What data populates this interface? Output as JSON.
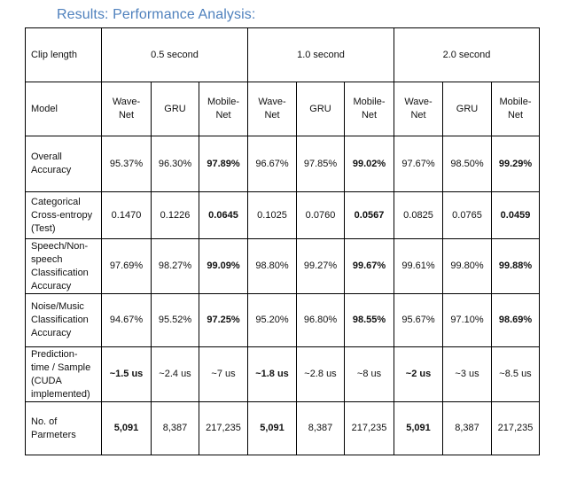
{
  "title": "Results: Performance Analysis:",
  "table": {
    "clip_length_label": "Clip length",
    "clip_lengths": [
      "0.5 second",
      "1.0 second",
      "2.0 second"
    ],
    "model_label": "Model",
    "models": [
      {
        "line1": "Wave-",
        "line2": "Net"
      },
      {
        "line1": "GRU",
        "line2": ""
      },
      {
        "line1": "Mobile-",
        "line2": "Net"
      }
    ],
    "rows": [
      {
        "label": [
          "Overall",
          "Accuracy"
        ],
        "values": [
          "95.37%",
          "96.30%",
          "97.89%",
          "96.67%",
          "97.85%",
          "99.02%",
          "97.67%",
          "98.50%",
          "99.29%"
        ],
        "bold": [
          2,
          5,
          8
        ]
      },
      {
        "label": [
          "Categorical",
          "Cross-entropy",
          "(Test)"
        ],
        "values": [
          "0.1470",
          "0.1226",
          "0.0645",
          "0.1025",
          "0.0760",
          "0.0567",
          "0.0825",
          "0.0765",
          "0.0459"
        ],
        "bold": [
          2,
          5,
          8
        ]
      },
      {
        "label": [
          "Speech/Non-",
          "speech",
          "Classification",
          "Accuracy"
        ],
        "values": [
          "97.69%",
          "98.27%",
          "99.09%",
          "98.80%",
          "99.27%",
          "99.67%",
          "99.61%",
          "99.80%",
          "99.88%"
        ],
        "bold": [
          2,
          5,
          8
        ]
      },
      {
        "label": [
          "Noise/Music",
          "Classification",
          "Accuracy"
        ],
        "values": [
          "94.67%",
          "95.52%",
          "97.25%",
          "95.20%",
          "96.80%",
          "98.55%",
          "95.67%",
          "97.10%",
          "98.69%"
        ],
        "bold": [
          2,
          5,
          8
        ]
      },
      {
        "label": [
          "Prediction-",
          "time / Sample",
          "(CUDA",
          "implemented)"
        ],
        "values": [
          "~1.5 us",
          "~2.4 us",
          "~7 us",
          "~1.8 us",
          "~2.8 us",
          "~8 us",
          "~2 us",
          "~3 us",
          "~8.5 us"
        ],
        "bold": [
          0,
          3,
          6
        ]
      },
      {
        "label": [
          "No. of",
          "Parmeters"
        ],
        "values": [
          "5,091",
          "8,387",
          "217,235",
          "5,091",
          "8,387",
          "217,235",
          "5,091",
          "8,387",
          "217,235"
        ],
        "bold": [
          0,
          3,
          6
        ]
      }
    ]
  }
}
